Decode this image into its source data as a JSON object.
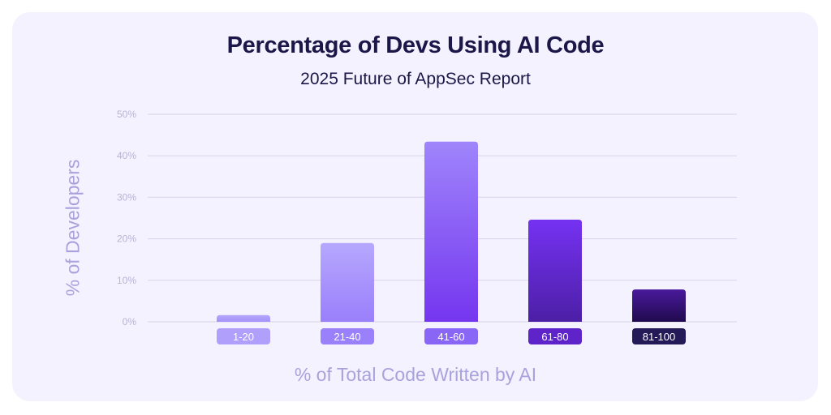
{
  "chart_data": {
    "type": "bar",
    "title": "Percentage of Devs Using AI Code",
    "subtitle": "2025 Future of AppSec Report",
    "xlabel": "% of Total Code Written by AI",
    "ylabel": "% of Developers",
    "categories": [
      "1-20",
      "21-40",
      "41-60",
      "61-80",
      "81-100"
    ],
    "values": [
      1.6,
      19,
      43.4,
      24.6,
      7.8
    ],
    "ylim": [
      0,
      50
    ],
    "yticks": [
      "0%",
      "10%",
      "20%",
      "30%",
      "40%",
      "50%"
    ],
    "grid": true,
    "bar_colors": [
      {
        "top": "#b3a6fb",
        "bottom": "#a592fb",
        "label": "#b09ffb"
      },
      {
        "top": "#b6a8fd",
        "bottom": "#9a7ffb",
        "label": "#9a80fa"
      },
      {
        "top": "#9f85fb",
        "bottom": "#7536ef",
        "label": "#8a66f7"
      },
      {
        "top": "#7532f2",
        "bottom": "#4c1fa6",
        "label": "#5f24c9"
      },
      {
        "top": "#4a1a9c",
        "bottom": "#1f0a4e",
        "label": "#241a57"
      }
    ]
  }
}
